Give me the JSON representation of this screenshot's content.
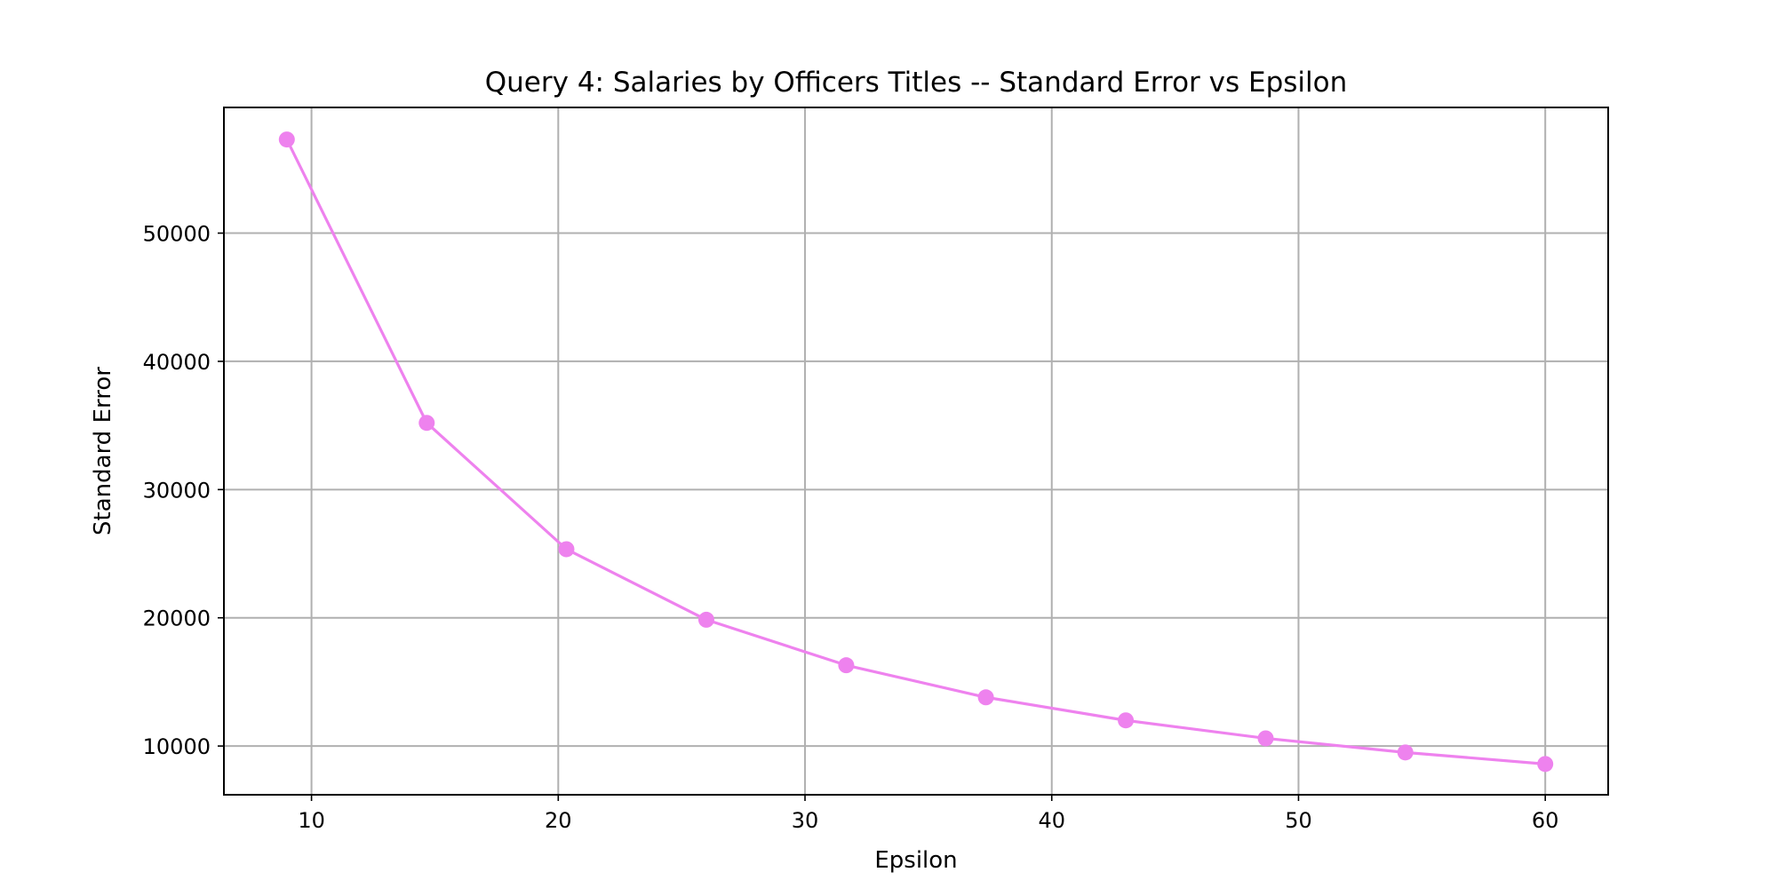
{
  "chart_data": {
    "type": "line",
    "title": "Query 4: Salaries by Officers Titles -- Standard Error vs Epsilon",
    "xlabel": "Epsilon",
    "ylabel": "Standard Error",
    "xlim": [
      6.45,
      62.55
    ],
    "ylim": [
      6200,
      59800
    ],
    "xticks": [
      10,
      20,
      30,
      40,
      50,
      60
    ],
    "xtick_labels": [
      "10",
      "20",
      "30",
      "40",
      "50",
      "60"
    ],
    "yticks": [
      10000,
      20000,
      30000,
      40000,
      50000
    ],
    "ytick_labels": [
      "10000",
      "20000",
      "30000",
      "40000",
      "50000"
    ],
    "grid": true,
    "legend": "none",
    "color": "#ee82ee",
    "series": [
      {
        "x": [
          9.0,
          14.67,
          20.33,
          26.0,
          31.67,
          37.33,
          43.0,
          48.67,
          54.33,
          60.0
        ],
        "y": [
          57300,
          35200,
          25350,
          19850,
          16300,
          13800,
          12000,
          10600,
          9500,
          8600
        ]
      }
    ]
  }
}
